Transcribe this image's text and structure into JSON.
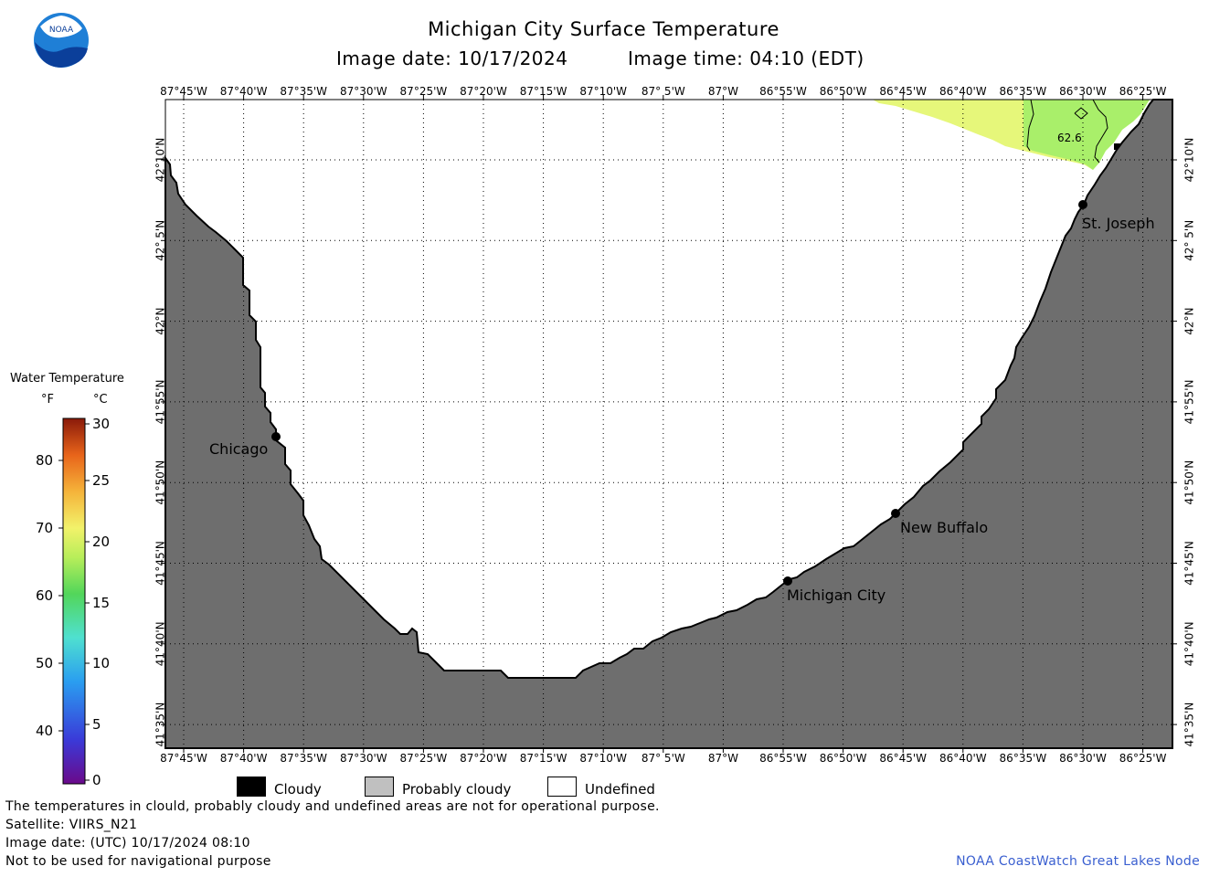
{
  "header": {
    "title": "Michigan City Surface Temperature",
    "image_date": "Image date: 10/17/2024",
    "image_time": "Image time: 04:10 (EDT)"
  },
  "logo": {
    "text": "NOAA",
    "icon": "noaa-logo"
  },
  "map": {
    "lon_labels": [
      "87°45'W",
      "87°40'W",
      "87°35'W",
      "87°30'W",
      "87°25'W",
      "87°20'W",
      "87°15'W",
      "87°10'W",
      "87° 5'W",
      "87°W",
      "86°55'W",
      "86°50'W",
      "86°45'W",
      "86°40'W",
      "86°35'W",
      "86°30'W",
      "86°25'W"
    ],
    "lat_labels": [
      "42°10'N",
      "42° 5'N",
      "42°N",
      "41°55'N",
      "41°50'N",
      "41°45'N",
      "41°40'N",
      "41°35'N"
    ],
    "cities": [
      {
        "name": "Chicago"
      },
      {
        "name": "St. Joseph"
      },
      {
        "name": "New Buffalo"
      },
      {
        "name": "Michigan City"
      }
    ],
    "temperature_label": "62.6",
    "land_color": "#6e6e6e",
    "undefined_color": "#ffffff"
  },
  "color_scale": {
    "title": "Water Temperature",
    "unit_f": "°F",
    "unit_c": "°C",
    "f_labels": [
      "80",
      "70",
      "60",
      "50",
      "40"
    ],
    "c_labels": [
      "30",
      "25",
      "20",
      "15",
      "10",
      "5",
      "0"
    ]
  },
  "legend": {
    "cloudy": "Cloudy",
    "probably_cloudy": "Probably cloudy",
    "undefined": "Undefined",
    "cloudy_color": "#000000",
    "probably_cloudy_color": "#c0c0c0",
    "undefined_color": "#ffffff"
  },
  "footer": {
    "disclaimer": "The temperatures in clould, probably cloudy and undefined areas are not for operational purpose.",
    "satellite": "Satellite: VIIRS_N21",
    "utc_date": "Image date: (UTC) 10/17/2024  08:10",
    "nav_warning": "Not to be used for navigational purpose",
    "credit": "NOAA CoastWatch Great Lakes Node"
  }
}
